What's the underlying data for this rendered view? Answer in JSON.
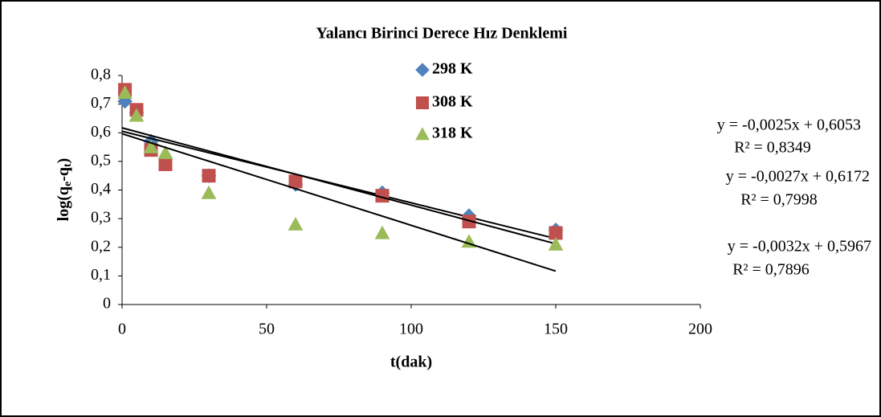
{
  "chart_data": {
    "type": "scatter",
    "title": "Yalancı Birinci Derece Hız Denklemi",
    "x_label": "t(dak)",
    "y_label": [
      "log(q",
      "e",
      "-q",
      "t",
      ")"
    ],
    "xlim": [
      0,
      200
    ],
    "xticks": [
      0,
      50,
      100,
      150,
      200
    ],
    "ylim": [
      0,
      0.8
    ],
    "yticks": [
      0,
      {
        "value": 0.1,
        "label": "0,1"
      },
      {
        "value": 0.2,
        "label": "0,2"
      },
      {
        "value": 0.3,
        "label": "0,3"
      },
      {
        "value": 0.4,
        "label": "0,4"
      },
      {
        "value": 0.5,
        "label": "0,5"
      },
      {
        "value": 0.6,
        "label": "0,6"
      },
      {
        "value": 0.7,
        "label": "0,7"
      },
      {
        "value": 0.8,
        "label": "0,8"
      }
    ],
    "series": [
      {
        "name": "298 K",
        "color": "#4f81bd",
        "marker": "diamond",
        "x": [
          1,
          5,
          10,
          15,
          30,
          60,
          90,
          120,
          150
        ],
        "values": [
          0.71,
          0.67,
          0.57,
          0.51,
          0.45,
          0.42,
          0.39,
          0.31,
          0.26
        ],
        "trend": {
          "slope": -0.0025,
          "intercept": 0.6053,
          "equation": "y = -0,0025x + 0,6053",
          "r_squared": "R² = 0,8349"
        }
      },
      {
        "name": "308 K",
        "color": "#c0504d",
        "marker": "square",
        "x": [
          1,
          5,
          10,
          15,
          30,
          60,
          90,
          120,
          150
        ],
        "values": [
          0.75,
          0.68,
          0.54,
          0.49,
          0.45,
          0.43,
          0.38,
          0.29,
          0.25
        ],
        "trend": {
          "slope": -0.0027,
          "intercept": 0.6172,
          "equation": "y = -0,0027x + 0,6172",
          "r_squared": "R² = 0,7998"
        }
      },
      {
        "name": "318 K",
        "color": "#9bbb59",
        "marker": "triangle",
        "x": [
          1,
          5,
          10,
          15,
          30,
          60,
          90,
          120,
          150
        ],
        "values": [
          0.74,
          0.66,
          0.55,
          0.53,
          0.39,
          0.28,
          0.25,
          0.22,
          0.21
        ],
        "trend": {
          "slope": -0.0032,
          "intercept": 0.5967,
          "equation": "y = -0,0032x + 0,5967",
          "r_squared": "R² = 0,7896"
        }
      }
    ]
  }
}
